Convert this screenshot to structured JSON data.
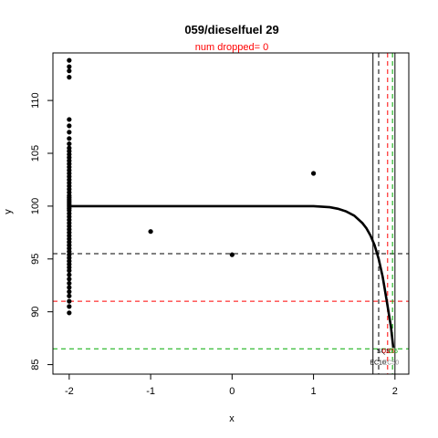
{
  "chart_data": {
    "type": "scatter",
    "title": "059/dieselfuel 29",
    "subtitle": "num dropped= 0",
    "xlabel": "x",
    "ylabel": "y",
    "xlim": [
      -2.2,
      2.17
    ],
    "ylim": [
      84.1,
      114.5
    ],
    "x_ticks": [
      -2,
      -1,
      0,
      1,
      2
    ],
    "y_ticks": [
      85,
      90,
      95,
      100,
      105,
      110
    ],
    "points_x_minus2": [
      113.8,
      113.2,
      112.8,
      112.2,
      108.2,
      107.6,
      107.0,
      106.4,
      105.9,
      105.5,
      105.2,
      104.9,
      104.6,
      104.3,
      104.0,
      103.7,
      103.4,
      103.1,
      102.8,
      102.5,
      102.2,
      101.9,
      101.6,
      101.3,
      101.0,
      100.8,
      100.6,
      100.4,
      100.2,
      100.0,
      99.8,
      99.6,
      99.3,
      99.0,
      98.7,
      98.4,
      98.1,
      97.8,
      97.5,
      97.2,
      96.9,
      96.6,
      96.3,
      96.0,
      95.7,
      95.4,
      95.1,
      94.8,
      94.5,
      94.2,
      93.9,
      93.5,
      93.1,
      92.7,
      92.3,
      91.9,
      91.5,
      91.0,
      90.5,
      89.9
    ],
    "points_other": [
      {
        "x": -1,
        "y": 97.6
      },
      {
        "x": 0,
        "y": 95.4
      },
      {
        "x": 1,
        "y": 103.1
      }
    ],
    "fitted_curve": {
      "plateau": 100.0,
      "x": [
        -2.0,
        1.0,
        1.2,
        1.3,
        1.4,
        1.5,
        1.6,
        1.65,
        1.7,
        1.75,
        1.8,
        1.85,
        1.9,
        1.95,
        1.98
      ],
      "y": [
        100.0,
        100.0,
        99.9,
        99.75,
        99.5,
        99.1,
        98.4,
        97.9,
        97.2,
        96.3,
        95.0,
        93.3,
        91.0,
        88.6,
        86.6
      ]
    },
    "hlines": [
      {
        "y": 95.5,
        "color": "#000000",
        "dash": true
      },
      {
        "y": 91.0,
        "color": "#ff0000",
        "dash": true
      },
      {
        "y": 86.5,
        "color": "#00aa00",
        "dash": true
      }
    ],
    "vlines": [
      {
        "x": 1.73,
        "color": "#000000",
        "dash": false
      },
      {
        "x": 1.8,
        "color": "#000000",
        "dash": true
      },
      {
        "x": 1.91,
        "color": "#ff0000",
        "dash": true
      },
      {
        "x": 1.97,
        "color": "#00aa00",
        "dash": true
      },
      {
        "x": 2.0,
        "color": "#000000",
        "dash": false
      }
    ],
    "annotations": [
      {
        "text": "SQS",
        "x": 1.86,
        "y": 86.1,
        "color": "#000000"
      },
      {
        "text": "0.25",
        "x": 1.92,
        "y": 86.1,
        "color": "#ff0000"
      },
      {
        "text": "EC10",
        "x": 1.79,
        "y": 85.0,
        "color": "#000000"
      },
      {
        "text": "0.5",
        "x": 1.98,
        "y": 86.1,
        "color": "#00aa00"
      },
      {
        "text": "EC50",
        "x": 1.95,
        "y": 85.0,
        "color": "#888888"
      }
    ]
  }
}
